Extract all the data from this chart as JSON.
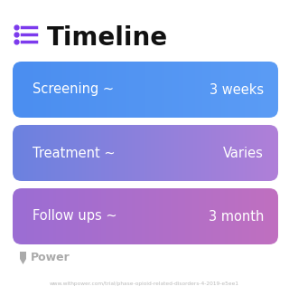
{
  "title": "Timeline",
  "title_fontsize": 20,
  "title_color": "#111111",
  "icon_color": "#7C3AED",
  "background_color": "#ffffff",
  "rows": [
    {
      "label": "Screening ~",
      "value": "3 weeks",
      "color_left": "#4B8EF0",
      "color_right": "#5B9CF5"
    },
    {
      "label": "Treatment ~",
      "value": "Varies",
      "color_left": "#6B82E0",
      "color_right": "#B07FD8"
    },
    {
      "label": "Follow ups ~",
      "value": "3 month",
      "color_left": "#9B6DD4",
      "color_right": "#C070C0"
    }
  ],
  "footer_text": "Power",
  "footer_color": "#aaaaaa",
  "url_text": "www.withpower.com/trial/phase-opioid-related-disorders-4-2019-e5ee1",
  "url_color": "#bbbbbb",
  "text_color": "#ffffff",
  "label_fontsize": 10.5,
  "value_fontsize": 10.5
}
